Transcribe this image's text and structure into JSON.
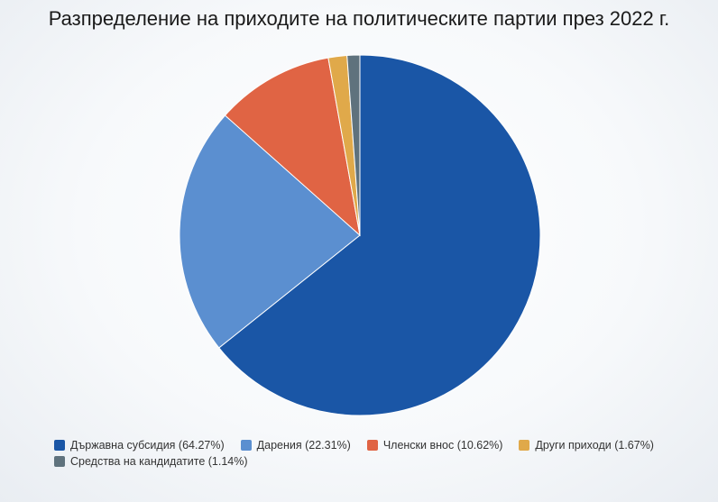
{
  "chart_data": {
    "type": "pie",
    "title": "Разпределение на приходите на политическите партии през 2022 г.",
    "start_angle": "12 o'clock, clockwise",
    "legend_position": "bottom-left",
    "slices": [
      {
        "label": "Държавна субсидия",
        "value": 64.27,
        "legend": "Държавна субсидия (64.27%)",
        "color": "#1a56a6"
      },
      {
        "label": "Дарения",
        "value": 22.31,
        "legend": "Дарения (22.31%)",
        "color": "#5b8fd0"
      },
      {
        "label": "Членски внос",
        "value": 10.62,
        "legend": "Членски внос (10.62%)",
        "color": "#e06444"
      },
      {
        "label": "Други приходи",
        "value": 1.67,
        "legend": "Други приходи (1.67%)",
        "color": "#e0a94a"
      },
      {
        "label": "Средства на кандидатите",
        "value": 1.14,
        "legend": "Средства на кандидатите (1.14%)",
        "color": "#5f727d"
      }
    ]
  }
}
